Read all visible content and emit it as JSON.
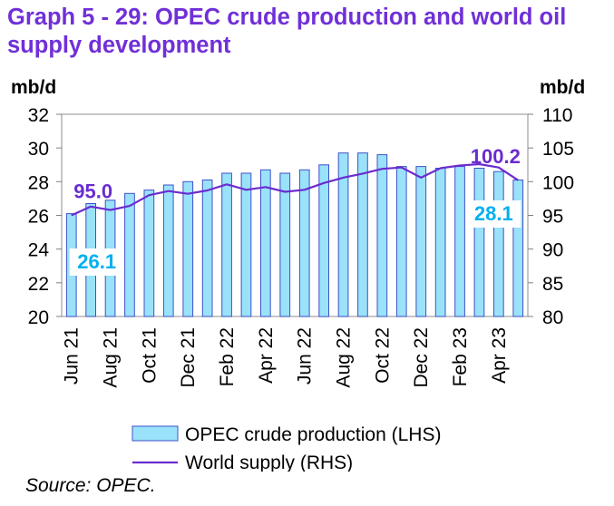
{
  "title": "Graph 5 - 29: OPEC crude production and world oil supply development",
  "source": "Source: OPEC.",
  "chart_data": {
    "type": "bar",
    "title": "Graph 5 - 29: OPEC crude production and world oil supply development",
    "categories": [
      "Jun 21",
      "Jul 21",
      "Aug 21",
      "Sep 21",
      "Oct 21",
      "Nov 21",
      "Dec 21",
      "Jan 22",
      "Feb 22",
      "Mar 22",
      "Apr 22",
      "May 22",
      "Jun 22",
      "Jul 22",
      "Aug 22",
      "Sep 22",
      "Oct 22",
      "Nov 22",
      "Dec 22",
      "Jan 23",
      "Feb 23",
      "Mar 23",
      "Apr 23",
      "May 23"
    ],
    "x_tick_labels": [
      "Jun 21",
      "Aug 21",
      "Oct 21",
      "Dec 21",
      "Feb 22",
      "Apr 22",
      "Jun 22",
      "Aug 22",
      "Oct 22",
      "Dec 22",
      "Feb 23",
      "Apr 23"
    ],
    "y_left": {
      "label": "mb/d",
      "min": 20,
      "max": 32,
      "ticks": [
        "20",
        "22",
        "24",
        "26",
        "28",
        "30",
        "32"
      ]
    },
    "y_right": {
      "label": "mb/d",
      "min": 80,
      "max": 110,
      "ticks": [
        "80",
        "85",
        "90",
        "95",
        "100",
        "105",
        "110"
      ]
    },
    "series": [
      {
        "name": "OPEC crude production (LHS)",
        "type": "bar",
        "axis": "left",
        "color": "#99e2fa",
        "edge": "#3f51c8",
        "values": [
          26.1,
          26.7,
          26.9,
          27.3,
          27.5,
          27.8,
          28.0,
          28.1,
          28.5,
          28.5,
          28.7,
          28.5,
          28.7,
          29.0,
          29.7,
          29.7,
          29.6,
          28.9,
          28.9,
          28.8,
          28.9,
          28.8,
          28.6,
          28.1
        ]
      },
      {
        "name": "World supply (RHS)",
        "type": "line",
        "axis": "right",
        "color": "#6a2ccf",
        "values": [
          95.0,
          96.3,
          95.8,
          96.4,
          98.0,
          98.6,
          98.2,
          98.7,
          99.6,
          98.8,
          99.2,
          98.5,
          98.8,
          99.8,
          100.6,
          101.2,
          101.9,
          102.1,
          100.6,
          102.0,
          102.4,
          102.6,
          102.1,
          100.2
        ]
      }
    ],
    "annotations": [
      {
        "text": "95.0",
        "series": "World supply (RHS)",
        "point": "Jun 21"
      },
      {
        "text": "100.2",
        "series": "World supply (RHS)",
        "point": "May 23"
      },
      {
        "text": "26.1",
        "series": "OPEC crude production (LHS)",
        "point": "Jun 21"
      },
      {
        "text": "28.1",
        "series": "OPEC crude production (LHS)",
        "point": "May 23"
      }
    ],
    "legend": {
      "placement": "bottom",
      "entries": [
        "OPEC crude production (LHS)",
        "World supply (RHS)"
      ]
    },
    "grid": false
  }
}
